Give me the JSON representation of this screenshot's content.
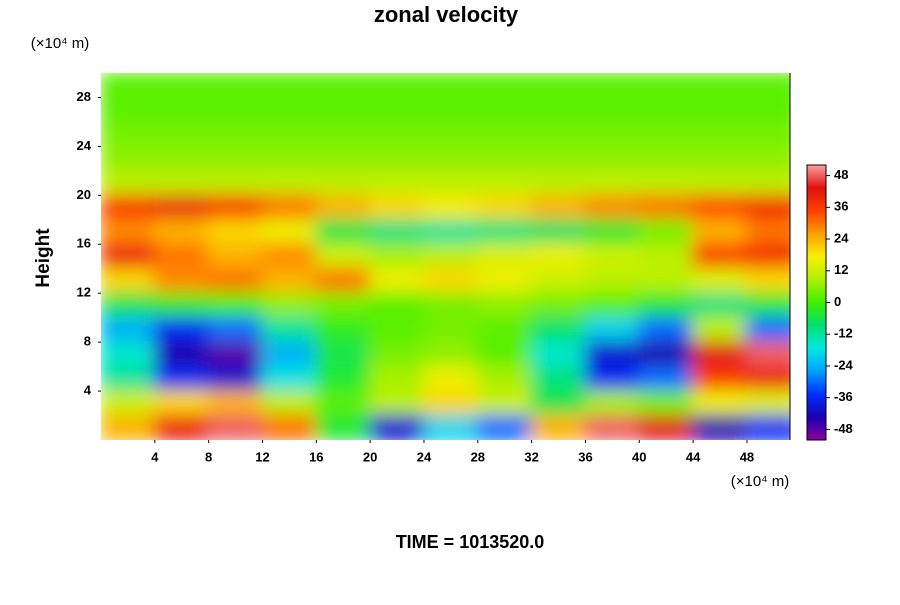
{
  "chart_data": {
    "type": "contour",
    "title": "zonal velocity",
    "y_unit": "(×10⁴ m)",
    "x_unit": "(×10⁴ m)",
    "ylabel": "Height",
    "footer": "TIME = 1013520.0",
    "xlim": [
      0,
      51.2
    ],
    "ylim": [
      0,
      30
    ],
    "xticks": [
      4,
      8,
      12,
      16,
      20,
      24,
      28,
      32,
      36,
      40,
      44,
      48
    ],
    "yticks": [
      4,
      8,
      12,
      16,
      20,
      24,
      28
    ],
    "x": [
      2,
      6,
      10,
      14,
      18,
      22,
      26,
      30,
      34,
      38,
      42,
      46,
      50
    ],
    "y": [
      29,
      27,
      25,
      23,
      21,
      19,
      17,
      15,
      13,
      11,
      9,
      7,
      5,
      3,
      1
    ],
    "z": [
      [
        2,
        2,
        2,
        2,
        2,
        2,
        2,
        2,
        2,
        2,
        2,
        2,
        2
      ],
      [
        2,
        2,
        2,
        2,
        2,
        2,
        2,
        2,
        2,
        2,
        2,
        2,
        2
      ],
      [
        4,
        4,
        4,
        4,
        4,
        4,
        4,
        4,
        4,
        4,
        4,
        4,
        4
      ],
      [
        6,
        6,
        6,
        6,
        6,
        6,
        6,
        6,
        6,
        6,
        6,
        6,
        6
      ],
      [
        10,
        10,
        10,
        10,
        10,
        10,
        10,
        10,
        10,
        10,
        10,
        10,
        10
      ],
      [
        36,
        40,
        36,
        30,
        24,
        20,
        18,
        20,
        24,
        28,
        30,
        34,
        38
      ],
      [
        28,
        24,
        20,
        16,
        -6,
        -10,
        -12,
        -10,
        -8,
        -4,
        4,
        24,
        30
      ],
      [
        40,
        30,
        24,
        28,
        12,
        8,
        10,
        14,
        16,
        12,
        10,
        36,
        38
      ],
      [
        20,
        28,
        30,
        24,
        30,
        16,
        20,
        16,
        12,
        10,
        10,
        14,
        20
      ],
      [
        -6,
        -2,
        0,
        6,
        4,
        2,
        4,
        6,
        4,
        2,
        -4,
        -10,
        -4
      ],
      [
        -24,
        -36,
        -30,
        -12,
        -2,
        2,
        4,
        2,
        -8,
        -20,
        -30,
        10,
        -30
      ],
      [
        -16,
        -44,
        -48,
        -24,
        -6,
        4,
        6,
        2,
        -16,
        -40,
        -44,
        44,
        48
      ],
      [
        -12,
        -36,
        -40,
        -18,
        -4,
        8,
        16,
        8,
        -10,
        -36,
        -30,
        36,
        40
      ],
      [
        12,
        20,
        24,
        10,
        2,
        10,
        20,
        12,
        -6,
        8,
        4,
        16,
        14
      ],
      [
        24,
        40,
        48,
        30,
        -4,
        -40,
        -20,
        -30,
        24,
        48,
        44,
        -44,
        -36
      ]
    ],
    "clim": [
      -52,
      52
    ],
    "cticks": [
      -48,
      -36,
      -24,
      -12,
      0,
      12,
      24,
      36,
      48
    ],
    "colormap": [
      "#8b00a0",
      "#1b00b0",
      "#0030ff",
      "#00a0ff",
      "#00e8e0",
      "#00e070",
      "#40f000",
      "#b0f000",
      "#f8f000",
      "#ffa000",
      "#ff4000",
      "#e01010",
      "#ffa0a0"
    ]
  }
}
